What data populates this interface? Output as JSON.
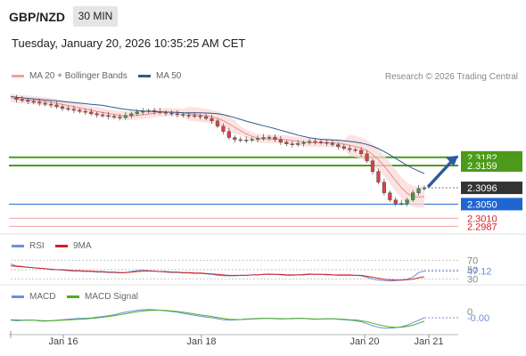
{
  "header": {
    "symbol": "GBP/NZD",
    "timeframe": "30 MIN",
    "datetime": "Tuesday, January 20, 2026 10:35:25 AM CET",
    "credit": "Research © 2026 Trading Central"
  },
  "legend": {
    "main": [
      {
        "label": "MA 20 + Bollinger Bands",
        "color": "#f4a0a0"
      },
      {
        "label": "MA 50",
        "color": "#2e5c8a"
      }
    ],
    "rsi": [
      {
        "label": "RSI",
        "color": "#6f8fd8"
      },
      {
        "label": "9MA",
        "color": "#d42020"
      }
    ],
    "macd": [
      {
        "label": "MACD",
        "color": "#6f8fd8"
      },
      {
        "label": "MACD Signal",
        "color": "#4caf20"
      }
    ]
  },
  "chart_data": [
    {
      "type": "candlestick",
      "title": "",
      "ylim": [
        2.2968,
        2.3385
      ],
      "x_ticks": [
        "Jan 16",
        "Jan 18",
        "Jan 20",
        "Jan 21"
      ],
      "price_levels": [
        {
          "value": 2.3182,
          "label": "2.3182",
          "color": "#4c9a1a",
          "style": "resistance"
        },
        {
          "value": 2.3159,
          "label": "2.3159",
          "color": "#4c9a1a",
          "style": "resistance"
        },
        {
          "value": 2.3096,
          "label": "2.3096",
          "color": "#333333",
          "style": "current"
        },
        {
          "value": 2.305,
          "label": "2.3050",
          "color": "#1f66d1",
          "style": "pivot"
        },
        {
          "value": 2.301,
          "label": "2.3010",
          "color": "#e06060",
          "style": "support"
        },
        {
          "value": 2.2987,
          "label": "2.2987",
          "color": "#e06060",
          "style": "support"
        }
      ],
      "close_path": [
        2.335,
        2.3345,
        2.3343,
        2.334,
        2.3338,
        2.3335,
        2.3332,
        2.333,
        2.3325,
        2.332,
        2.3318,
        2.3315,
        2.3312,
        2.331,
        2.3305,
        2.3302,
        2.33,
        2.3298,
        2.3296,
        2.3294,
        2.33,
        2.3305,
        2.331,
        2.3312,
        2.3314,
        2.3311,
        2.3309,
        2.3307,
        2.3305,
        2.3303,
        2.3301,
        2.33,
        2.3299,
        2.3297,
        2.3292,
        2.3285,
        2.327,
        2.3255,
        2.3238,
        2.3232,
        2.323,
        2.3231,
        2.3233,
        2.3235,
        2.3238,
        2.3239,
        2.3232,
        2.3225,
        2.322,
        2.3218,
        2.3221,
        2.3224,
        2.3227,
        2.3226,
        2.3224,
        2.3222,
        2.3218,
        2.3212,
        2.3207,
        2.3204,
        2.3202,
        2.3192,
        2.3172,
        2.3142,
        2.3112,
        2.3082,
        2.3062,
        2.3052,
        2.3052,
        2.3062,
        2.3082,
        2.3094,
        2.3096
      ],
      "forecast_target": 2.3182
    },
    {
      "type": "line",
      "title": "RSI",
      "levels": [
        70,
        50,
        30
      ],
      "current_value_label": "47.12",
      "series": [
        {
          "name": "RSI",
          "values": [
            62,
            58,
            57,
            55,
            54,
            53,
            52,
            50,
            50,
            49,
            48,
            47,
            47,
            46,
            46,
            45,
            45,
            44,
            44,
            43,
            44,
            46,
            48,
            49,
            48,
            47,
            46,
            45,
            44,
            44,
            43,
            43,
            42,
            42,
            41,
            40,
            38,
            37,
            37,
            37,
            38,
            38,
            39,
            39,
            40,
            41,
            40,
            39,
            38,
            38,
            39,
            40,
            41,
            40,
            40,
            39,
            39,
            38,
            38,
            38,
            38,
            37,
            34,
            30,
            28,
            27,
            26,
            27,
            28,
            30,
            34,
            44,
            47.12
          ]
        },
        {
          "name": "9MA",
          "values": [
            58,
            57,
            56,
            55,
            54,
            53,
            52,
            51,
            50,
            50,
            49,
            48,
            48,
            47,
            47,
            46,
            46,
            45,
            45,
            44,
            44,
            45,
            46,
            47,
            47,
            47,
            46,
            46,
            45,
            45,
            44,
            44,
            43,
            43,
            42,
            41,
            40,
            39,
            38,
            38,
            38,
            38,
            39,
            39,
            40,
            40,
            40,
            40,
            39,
            39,
            39,
            39,
            40,
            40,
            40,
            40,
            39,
            39,
            39,
            39,
            38,
            38,
            36,
            34,
            32,
            30,
            29,
            28,
            28,
            29,
            30,
            33,
            35
          ]
        }
      ]
    },
    {
      "type": "line",
      "title": "MACD",
      "current_value_label": "-0.00",
      "zero_label": "0",
      "series": [
        {
          "name": "MACD",
          "values": [
            -0.1,
            -0.12,
            -0.11,
            -0.09,
            -0.1,
            -0.13,
            -0.14,
            -0.12,
            -0.1,
            -0.08,
            -0.06,
            -0.04,
            -0.03,
            -0.02,
            -0.01,
            0.02,
            0.05,
            0.08,
            0.12,
            0.18,
            0.22,
            0.26,
            0.3,
            0.32,
            0.33,
            0.32,
            0.3,
            0.28,
            0.25,
            0.22,
            0.18,
            0.14,
            0.1,
            0.06,
            0.03,
            0.0,
            -0.04,
            -0.08,
            -0.1,
            -0.09,
            -0.07,
            -0.05,
            -0.04,
            -0.03,
            -0.02,
            -0.03,
            -0.04,
            -0.05,
            -0.04,
            -0.03,
            -0.02,
            -0.03,
            -0.05,
            -0.06,
            -0.05,
            -0.04,
            -0.04,
            -0.06,
            -0.08,
            -0.1,
            -0.12,
            -0.16,
            -0.24,
            -0.32,
            -0.38,
            -0.42,
            -0.42,
            -0.4,
            -0.36,
            -0.3,
            -0.2,
            -0.1,
            -0.0
          ]
        },
        {
          "name": "MACD Signal",
          "values": [
            -0.08,
            -0.09,
            -0.1,
            -0.1,
            -0.1,
            -0.11,
            -0.12,
            -0.12,
            -0.11,
            -0.1,
            -0.09,
            -0.07,
            -0.06,
            -0.05,
            -0.03,
            -0.01,
            0.02,
            0.05,
            0.08,
            0.12,
            0.16,
            0.2,
            0.24,
            0.27,
            0.29,
            0.3,
            0.3,
            0.29,
            0.27,
            0.25,
            0.22,
            0.19,
            0.15,
            0.11,
            0.08,
            0.05,
            0.01,
            -0.03,
            -0.06,
            -0.07,
            -0.07,
            -0.06,
            -0.05,
            -0.04,
            -0.03,
            -0.03,
            -0.03,
            -0.04,
            -0.04,
            -0.04,
            -0.03,
            -0.03,
            -0.04,
            -0.05,
            -0.05,
            -0.05,
            -0.04,
            -0.05,
            -0.06,
            -0.08,
            -0.09,
            -0.12,
            -0.16,
            -0.22,
            -0.28,
            -0.33,
            -0.37,
            -0.39,
            -0.38,
            -0.35,
            -0.3,
            -0.22,
            -0.14
          ]
        }
      ]
    }
  ]
}
